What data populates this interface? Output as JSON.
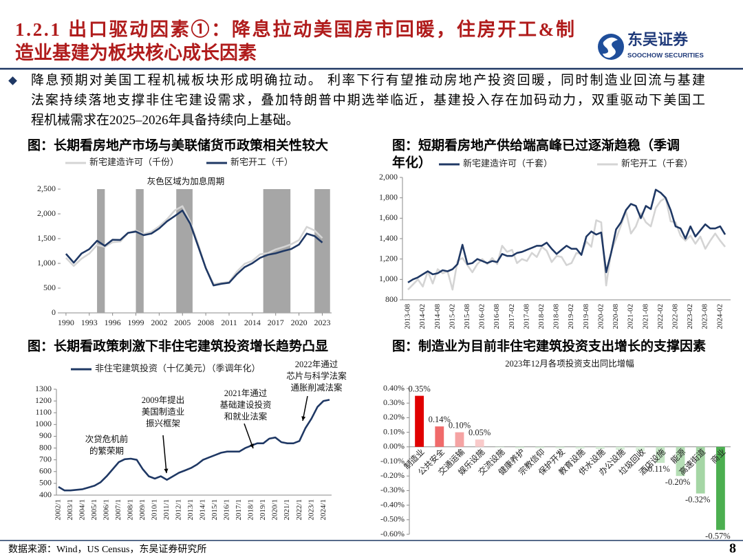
{
  "header": {
    "title": [
      "1.2.1 出口驱动因素①：降息拉动美国房市回暖，住房开工&制",
      "造业基建为板块核心成长因素"
    ],
    "logo": {
      "name": "东吴证券",
      "name_en": "SOOCHOW SECURITIES"
    }
  },
  "bullet": [
    "降息预期对美国工程机械板块形成明确拉动。 利率下行有望推动房地产投资回暖，同时制造业回流与基建",
    "法案持续落地支撑非住宅建设需求，叠加特朗普中期选举临近，基建投入存在加码动力，双重驱动下美国工",
    "程机械需求在2025–2026年具备持续向上基础。"
  ],
  "footer": {
    "source": "数据来源：Wind，US Census，东吴证券研究所",
    "page": 8
  },
  "chart_data": [
    {
      "type": "line",
      "title": [
        "图：长期看房地产市场与美联储货币政策相关性较大"
      ],
      "annotation": "灰色区域为加息周期",
      "x": [
        1990,
        1991,
        1992,
        1993,
        1994,
        1995,
        1996,
        1997,
        1998,
        1999,
        2000,
        2001,
        2002,
        2003,
        2004,
        2005,
        2006,
        2007,
        2008,
        2009,
        2010,
        2011,
        2012,
        2013,
        2014,
        2015,
        2016,
        2017,
        2018,
        2019,
        2020,
        2021,
        2022,
        2023
      ],
      "xlim": [
        1989.3,
        2024.2
      ],
      "xticks": [
        1990,
        1993,
        1996,
        1999,
        2002,
        2005,
        2008,
        2011,
        2014,
        2017,
        2020,
        2023
      ],
      "ylim": [
        0,
        2500
      ],
      "yticks": [
        0,
        500,
        {
          "value": 1000,
          "label": "1,000"
        },
        {
          "value": 1500,
          "label": "1,500"
        },
        {
          "value": 2000,
          "label": "2,000"
        },
        {
          "value": 2500,
          "label": "2,500"
        }
      ],
      "shaded": [
        [
          1994,
          1995
        ],
        [
          1999,
          2000
        ],
        [
          2004.2,
          2006.3
        ],
        [
          2015.4,
          2018.9
        ],
        [
          2022,
          2024
        ]
      ],
      "shaded_color": "#a6a6a6",
      "series": [
        {
          "name": "新宅建造许可（千份）",
          "color": "#d4d4d4",
          "values": [
            1111,
            949,
            1095,
            1199,
            1372,
            1333,
            1426,
            1441,
            1612,
            1664,
            1592,
            1637,
            1748,
            1889,
            2070,
            2155,
            1839,
            1398,
            905,
            583,
            605,
            624,
            830,
            991,
            1052,
            1183,
            1207,
            1282,
            1329,
            1386,
            1471,
            1737,
            1665,
            1511
          ]
        },
        {
          "name": "新宅开工（千）",
          "color": "#1f3864",
          "values": [
            1193,
            1014,
            1200,
            1288,
            1457,
            1354,
            1477,
            1474,
            1617,
            1641,
            1569,
            1603,
            1705,
            1848,
            1956,
            2068,
            1801,
            1355,
            906,
            554,
            587,
            609,
            781,
            925,
            1003,
            1112,
            1174,
            1203,
            1250,
            1290,
            1380,
            1601,
            1551,
            1420
          ]
        }
      ]
    },
    {
      "type": "line",
      "title": [
        "图：短期看房地产供给端高峰已过逐渐趋稳（季调",
        "年化）"
      ],
      "categories": [
        "2013-08",
        null,
        null,
        "2014-02",
        null,
        null,
        "2014-08",
        null,
        null,
        "2015-02",
        null,
        null,
        "2015-08",
        null,
        null,
        "2016-02",
        null,
        null,
        "2016-08",
        null,
        null,
        "2017-02",
        null,
        null,
        "2017-08",
        null,
        null,
        "2018-02",
        null,
        null,
        "2018-08",
        null,
        null,
        "2019-02",
        null,
        null,
        "2019-08",
        null,
        null,
        "2020-02",
        null,
        null,
        "2020-08",
        null,
        null,
        "2021-02",
        null,
        null,
        "2021-08",
        null,
        null,
        "2022-02",
        null,
        null,
        "2022-08",
        null,
        null,
        "2023-02",
        null,
        null,
        "2023-08",
        null,
        null,
        "2024-02",
        null
      ],
      "ylim": [
        800,
        2000
      ],
      "yticks": [
        800,
        {
          "value": 1000,
          "label": "1,000"
        },
        {
          "value": 1200,
          "label": "1,200"
        },
        {
          "value": 1400,
          "label": "1,400"
        },
        {
          "value": 1600,
          "label": "1,600"
        },
        {
          "value": 1800,
          "label": "1,800"
        },
        {
          "value": 2000,
          "label": "2,000"
        }
      ],
      "series": [
        {
          "name": "新宅开工（千套）",
          "color": "#d4d4d4",
          "values": [
            900,
            950,
            1000,
            930,
            1080,
            960,
            1100,
            1060,
            1080,
            900,
            1180,
            1210,
            1140,
            1070,
            1150,
            1200,
            1150,
            1210,
            1150,
            1330,
            1270,
            1290,
            1160,
            1200,
            1180,
            1260,
            1220,
            1320,
            1280,
            1170,
            1230,
            1220,
            1140,
            1160,
            1260,
            1250,
            1370,
            1320,
            1580,
            1560,
            940,
            1270,
            1400,
            1530,
            1670,
            1450,
            1520,
            1650,
            1560,
            1520,
            1700,
            1770,
            1800,
            1570,
            1560,
            1430,
            1380,
            1430,
            1350,
            1420,
            1300,
            1380,
            1450,
            1380,
            1320
          ]
        },
        {
          "name": "新宅建造许可（千套）",
          "color": "#1f3864",
          "values": [
            970,
            1000,
            1020,
            1050,
            1080,
            1050,
            1060,
            1090,
            1080,
            1100,
            1150,
            1340,
            1150,
            1160,
            1200,
            1180,
            1160,
            1180,
            1170,
            1250,
            1230,
            1230,
            1260,
            1270,
            1290,
            1310,
            1330,
            1330,
            1360,
            1300,
            1250,
            1290,
            1330,
            1300,
            1300,
            1240,
            1420,
            1470,
            1440,
            1460,
            1070,
            1260,
            1490,
            1560,
            1680,
            1740,
            1720,
            1600,
            1720,
            1690,
            1880,
            1850,
            1800,
            1680,
            1520,
            1500,
            1400,
            1520,
            1420,
            1480,
            1540,
            1500,
            1500,
            1520,
            1440
          ]
        }
      ]
    },
    {
      "type": "line",
      "title": [
        "图：长期看政策刺激下非住宅建筑投资增长趋势凸显"
      ],
      "categories": [
        "2002/1",
        null,
        "2003/1",
        null,
        "2004/1",
        null,
        "2005/1",
        null,
        "2006/1",
        null,
        "2007/1",
        null,
        "2008/1",
        null,
        "2009/1",
        null,
        "2010/1",
        null,
        "2011/1",
        null,
        "2012/1",
        null,
        "2013/1",
        null,
        "2014/1",
        null,
        "2015/1",
        null,
        "2016/1",
        null,
        "2017/1",
        null,
        "2018/1",
        null,
        "2019/1",
        null,
        "2020/1",
        null,
        "2021/1",
        null,
        "2022/1",
        null,
        "2023/1",
        null,
        "2024/1",
        null
      ],
      "ylim": [
        400,
        1300
      ],
      "yticks": [
        400,
        500,
        600,
        700,
        800,
        900,
        1000,
        1100,
        1200,
        1300
      ],
      "annotations": [
        {
          "lines": [
            "次贷危机前",
            "的繁荣期"
          ]
        },
        {
          "lines": [
            "2009年提出",
            "美国制造业",
            "振兴框架"
          ]
        },
        {
          "lines": [
            "2021年通过",
            "基础建设投资",
            "和就业法案"
          ]
        },
        {
          "lines": [
            "2022年通过",
            "芯片与科学法案",
            "通胀削减法案"
          ]
        }
      ],
      "series": [
        {
          "name": "非住宅建筑投资（十亿美元）（季调年化）",
          "color": "#1f3864",
          "values": [
            470,
            440,
            440,
            445,
            450,
            465,
            480,
            510,
            560,
            620,
            680,
            705,
            710,
            700,
            620,
            560,
            540,
            560,
            530,
            560,
            590,
            610,
            630,
            660,
            700,
            720,
            740,
            760,
            770,
            770,
            770,
            800,
            820,
            840,
            840,
            880,
            890,
            850,
            840,
            840,
            860,
            970,
            1050,
            1150,
            1200,
            1210
          ]
        }
      ]
    },
    {
      "type": "bar",
      "title": [
        "图：制造业为目前非住宅建筑投资支出增长的支撑因素"
      ],
      "subtitle": "2023年12月各项投资支出同比增幅",
      "categories": [
        "制造业",
        "公共安全",
        "交通运输",
        "娱乐设施",
        "交流设施",
        "健康养护",
        "宗教信仰",
        "保护开发",
        "教育设施",
        "供水设施",
        "办公设施",
        "垃圾回收",
        "酒店设施",
        "能源",
        "高速街道",
        "商业"
      ],
      "values": [
        0.35,
        0.14,
        0.1,
        0.05,
        -0.005,
        -0.01,
        -0.01,
        -0.01,
        -0.012,
        -0.015,
        -0.02,
        -0.03,
        -0.11,
        -0.2,
        -0.32,
        -0.57
      ],
      "value_labels": [
        "0.35%",
        "0.14%",
        "0.10%",
        "0.05%",
        null,
        null,
        null,
        null,
        null,
        null,
        null,
        null,
        "-0.11%",
        "-0.20%",
        "-0.32%",
        "-0.57%"
      ],
      "colors": [
        "#e00000",
        "#f06a6a",
        "#f5a3a3",
        "#f9caca",
        "#d9efd9",
        "#d9efd9",
        "#d9efd9",
        "#d9efd9",
        "#d9efd9",
        "#d9efd9",
        "#d9efd9",
        "#d9efd9",
        "#c5e6c5",
        "#b5deb5",
        "#a5d6a5",
        "#4caf50"
      ],
      "ylim": [
        -0.6,
        0.4
      ],
      "yticks": [
        {
          "value": -0.6,
          "label": "-0.60%"
        },
        {
          "value": -0.5,
          "label": "-0.50%"
        },
        {
          "value": -0.4,
          "label": "-0.40%"
        },
        {
          "value": -0.3,
          "label": "-0.30%"
        },
        {
          "value": -0.2,
          "label": "-0.20%"
        },
        {
          "value": -0.1,
          "label": "-0.10%"
        },
        {
          "value": 0,
          "label": "0.00%"
        },
        {
          "value": 0.1,
          "label": "0.10%"
        },
        {
          "value": 0.2,
          "label": "0.20%"
        },
        {
          "value": 0.3,
          "label": "0.30%"
        },
        {
          "value": 0.4,
          "label": "0.40%"
        }
      ]
    }
  ]
}
